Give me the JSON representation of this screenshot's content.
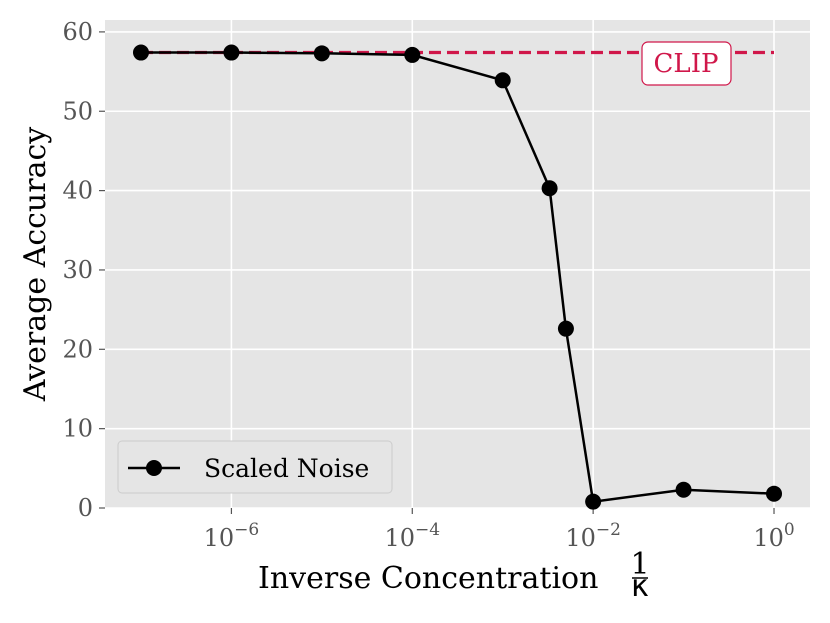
{
  "chart_data": {
    "type": "line",
    "xscale": "log",
    "xlabel": "Inverse Concentration",
    "xlabel_fraction": {
      "numerator": "1",
      "denominator": "κ"
    },
    "ylabel": "Average Accuracy",
    "xlim": [
      4e-08,
      2.5
    ],
    "ylim": [
      0,
      61.5
    ],
    "x_ticks": [
      {
        "base": "10",
        "exponent": "−6",
        "value": 1e-06
      },
      {
        "base": "10",
        "exponent": "−4",
        "value": 0.0001
      },
      {
        "base": "10",
        "exponent": "−2",
        "value": 0.01
      },
      {
        "base": "10",
        "exponent": "0",
        "value": 1
      }
    ],
    "y_ticks": [
      0,
      10,
      20,
      30,
      40,
      50,
      60
    ],
    "grid": true,
    "series": [
      {
        "name": "Scaled Noise",
        "color": "#000000",
        "marker": "circle",
        "x": [
          1e-07,
          1e-06,
          1e-05,
          0.0001,
          0.001,
          0.0033,
          0.005,
          0.01,
          0.1,
          1
        ],
        "y": [
          57.4,
          57.4,
          57.3,
          57.1,
          53.9,
          40.3,
          22.6,
          0.8,
          2.3,
          1.8
        ]
      }
    ],
    "reference_line": {
      "label": "CLIP",
      "y": 57.4,
      "color": "#d0174a",
      "style": "dashed"
    },
    "legend_placement": "lower-left",
    "colors": {
      "background": "#e5e5e5",
      "grid": "#ffffff",
      "tick_text": "#555555"
    }
  }
}
